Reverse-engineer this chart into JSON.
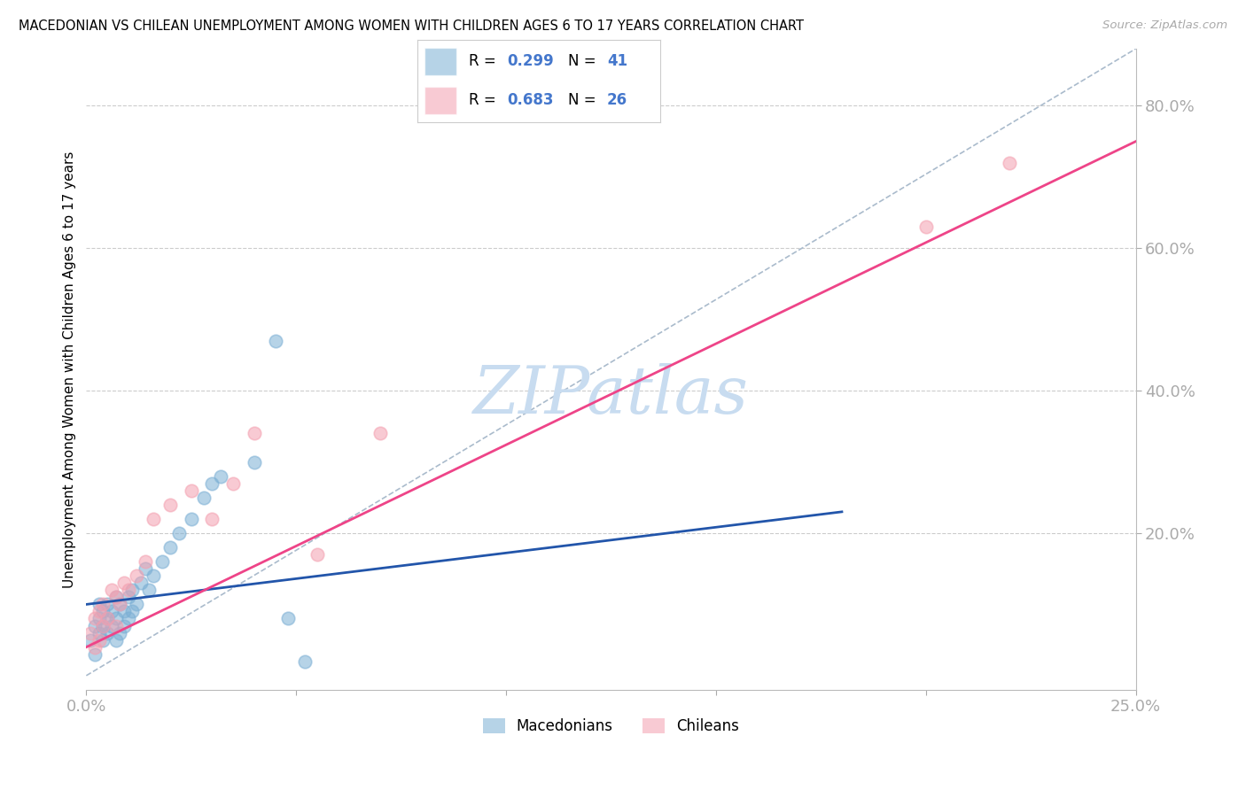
{
  "title": "MACEDONIAN VS CHILEAN UNEMPLOYMENT AMONG WOMEN WITH CHILDREN AGES 6 TO 17 YEARS CORRELATION CHART",
  "source": "Source: ZipAtlas.com",
  "ylabel": "Unemployment Among Women with Children Ages 6 to 17 years",
  "xlim": [
    0.0,
    0.25
  ],
  "ylim": [
    -0.02,
    0.88
  ],
  "xticks": [
    0.0,
    0.05,
    0.1,
    0.15,
    0.2,
    0.25
  ],
  "xticklabels": [
    "0.0%",
    "",
    "",
    "",
    "",
    "25.0%"
  ],
  "yticks_right": [
    0.2,
    0.4,
    0.6,
    0.8
  ],
  "ytick_labels_right": [
    "20.0%",
    "40.0%",
    "60.0%",
    "80.0%"
  ],
  "macedonian_color": "#7BAFD4",
  "chilean_color": "#F4A0B0",
  "watermark_color": "#C8DCF0",
  "macedonian_R": 0.299,
  "macedonian_N": 41,
  "chilean_R": 0.683,
  "chilean_N": 26,
  "mac_scatter_x": [
    0.001,
    0.002,
    0.002,
    0.003,
    0.003,
    0.003,
    0.004,
    0.004,
    0.004,
    0.005,
    0.005,
    0.005,
    0.006,
    0.006,
    0.007,
    0.007,
    0.007,
    0.008,
    0.008,
    0.009,
    0.009,
    0.01,
    0.01,
    0.011,
    0.011,
    0.012,
    0.013,
    0.014,
    0.015,
    0.016,
    0.018,
    0.02,
    0.022,
    0.025,
    0.028,
    0.03,
    0.032,
    0.04,
    0.045,
    0.048,
    0.052
  ],
  "mac_scatter_y": [
    0.05,
    0.03,
    0.07,
    0.06,
    0.08,
    0.1,
    0.05,
    0.07,
    0.09,
    0.06,
    0.08,
    0.1,
    0.07,
    0.09,
    0.05,
    0.08,
    0.11,
    0.06,
    0.1,
    0.07,
    0.09,
    0.08,
    0.11,
    0.09,
    0.12,
    0.1,
    0.13,
    0.15,
    0.12,
    0.14,
    0.16,
    0.18,
    0.2,
    0.22,
    0.25,
    0.27,
    0.28,
    0.3,
    0.47,
    0.08,
    0.02
  ],
  "chi_scatter_x": [
    0.001,
    0.002,
    0.002,
    0.003,
    0.003,
    0.004,
    0.004,
    0.005,
    0.006,
    0.007,
    0.007,
    0.008,
    0.009,
    0.01,
    0.012,
    0.014,
    0.016,
    0.02,
    0.025,
    0.03,
    0.035,
    0.04,
    0.055,
    0.07,
    0.2,
    0.22
  ],
  "chi_scatter_y": [
    0.06,
    0.04,
    0.08,
    0.05,
    0.09,
    0.07,
    0.1,
    0.08,
    0.12,
    0.07,
    0.11,
    0.1,
    0.13,
    0.12,
    0.14,
    0.16,
    0.22,
    0.24,
    0.26,
    0.22,
    0.27,
    0.34,
    0.17,
    0.34,
    0.63,
    0.72
  ],
  "mac_line_x": [
    0.0,
    0.18
  ],
  "mac_line_y": [
    0.1,
    0.23
  ],
  "chi_line_x": [
    0.0,
    0.25
  ],
  "chi_line_y": [
    0.04,
    0.75
  ],
  "ref_line_x": [
    0.0,
    0.25
  ],
  "ref_line_y": [
    0.0,
    0.88
  ]
}
